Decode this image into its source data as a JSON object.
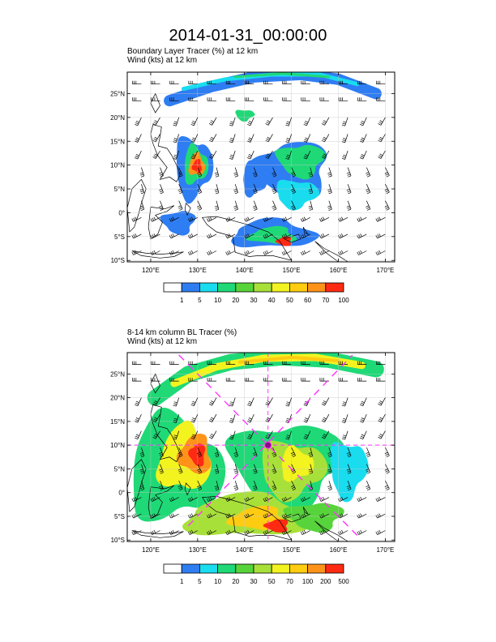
{
  "title": "2014-01-31_00:00:00",
  "lat_ticks": [
    25,
    20,
    15,
    10,
    5,
    0,
    -5,
    -10
  ],
  "lat_labels": [
    "25°N",
    "20°N",
    "15°N",
    "10°N",
    "5°N",
    "0°",
    "5°S",
    "10°S"
  ],
  "lon_ticks": [
    120,
    130,
    140,
    150,
    160,
    170
  ],
  "lon_labels": [
    "120°E",
    "130°E",
    "140°E",
    "150°E",
    "160°E",
    "170°E"
  ],
  "panels": [
    {
      "title_line1": "Boundary Layer Tracer   (%)     at   12 km",
      "title_line2": "Wind   (kts)     at   12 km",
      "colorbar_labels": [
        "1",
        "5",
        "10",
        "20",
        "30",
        "40",
        "50",
        "60",
        "70",
        "100"
      ],
      "colors": [
        "#ffffff",
        "#2f7df2",
        "#19dcef",
        "#1fd977",
        "#57d43b",
        "#a8e03a",
        "#f3f31f",
        "#ffcc11",
        "#ff931a",
        "#ff2a12"
      ]
    },
    {
      "title_line1": "8-14 km column BL Tracer   (%)",
      "title_line2": "Wind   (kts)     at   12 km",
      "colorbar_labels": [
        "1",
        "5",
        "10",
        "20",
        "30",
        "50",
        "70",
        "100",
        "200",
        "500"
      ],
      "colors": [
        "#ffffff",
        "#2f7df2",
        "#19dcef",
        "#1fd977",
        "#57d43b",
        "#a8e03a",
        "#f3f31f",
        "#ffcc11",
        "#ff931a",
        "#ff2a12"
      ]
    }
  ],
  "marker_color": "#ff33ff"
}
